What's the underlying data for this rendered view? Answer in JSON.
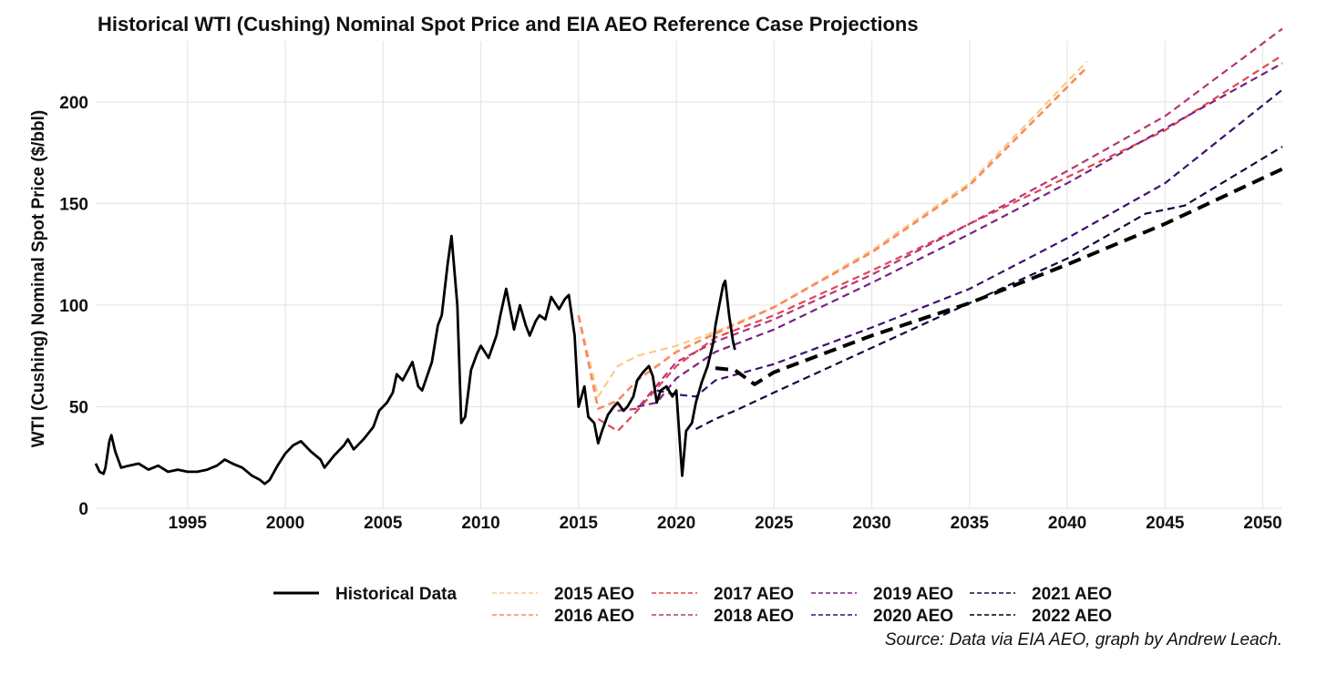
{
  "chart_data": {
    "type": "line",
    "title": "Historical WTI (Cushing) Nominal Spot Price and EIA AEO Reference Case Projections",
    "xlabel": "",
    "ylabel": "WTI (Cushing) Nominal Spot Price ($/bbl)",
    "caption": "Source: Data via EIA AEO, graph by Andrew Leach.",
    "xlim": [
      1990.3,
      2051
    ],
    "ylim": [
      0,
      230
    ],
    "x_ticks": [
      1995,
      2000,
      2005,
      2010,
      2015,
      2020,
      2025,
      2030,
      2035,
      2040,
      2045,
      2050
    ],
    "y_ticks": [
      0,
      50,
      100,
      150,
      200
    ],
    "grid": true,
    "legend_position": "bottom",
    "historical": {
      "name": "Historical Data",
      "color": "#000000",
      "x": [
        1990.3,
        1990.5,
        1990.7,
        1990.8,
        1991.0,
        1991.1,
        1991.3,
        1991.6,
        1992.0,
        1992.5,
        1993.0,
        1993.5,
        1994.0,
        1994.5,
        1995.0,
        1995.5,
        1996.0,
        1996.5,
        1996.9,
        1997.3,
        1997.8,
        1998.3,
        1998.7,
        1998.95,
        1999.2,
        1999.6,
        2000.0,
        2000.4,
        2000.8,
        2001.3,
        2001.8,
        2002.0,
        2002.5,
        2003.0,
        2003.2,
        2003.5,
        2004.0,
        2004.5,
        2004.8,
        2005.2,
        2005.5,
        2005.7,
        2006.0,
        2006.5,
        2006.8,
        2007.0,
        2007.5,
        2007.8,
        2008.0,
        2008.3,
        2008.5,
        2008.8,
        2009.0,
        2009.2,
        2009.5,
        2009.8,
        2010.0,
        2010.4,
        2010.8,
        2011.0,
        2011.3,
        2011.7,
        2012.0,
        2012.3,
        2012.5,
        2012.8,
        2013.0,
        2013.3,
        2013.6,
        2014.0,
        2014.3,
        2014.5,
        2014.8,
        2015.0,
        2015.3,
        2015.5,
        2015.8,
        2016.0,
        2016.2,
        2016.5,
        2016.8,
        2017.0,
        2017.3,
        2017.5,
        2017.8,
        2018.0,
        2018.3,
        2018.6,
        2018.8,
        2019.0,
        2019.2,
        2019.5,
        2019.8,
        2020.0,
        2020.2,
        2020.3,
        2020.5,
        2020.8,
        2021.0,
        2021.3,
        2021.6,
        2021.9,
        2022.0,
        2022.2,
        2022.4,
        2022.5,
        2022.7,
        2022.9,
        2023.0
      ],
      "values": [
        22,
        18,
        17,
        20,
        33,
        36,
        28,
        20,
        21,
        22,
        19,
        21,
        18,
        19,
        18,
        18,
        19,
        21,
        24,
        22,
        20,
        16,
        14,
        12,
        14,
        21,
        27,
        31,
        33,
        28,
        24,
        20,
        26,
        31,
        34,
        29,
        34,
        40,
        48,
        52,
        57,
        66,
        63,
        72,
        60,
        58,
        72,
        90,
        95,
        120,
        134,
        100,
        42,
        45,
        68,
        76,
        80,
        74,
        85,
        95,
        108,
        88,
        100,
        90,
        85,
        92,
        95,
        93,
        104,
        98,
        103,
        105,
        85,
        50,
        60,
        45,
        42,
        32,
        38,
        46,
        50,
        52,
        48,
        50,
        55,
        63,
        67,
        70,
        65,
        52,
        58,
        60,
        55,
        58,
        30,
        16,
        38,
        42,
        52,
        62,
        70,
        82,
        90,
        100,
        110,
        112,
        95,
        82,
        78
      ]
    },
    "series": [
      {
        "name": "2015 AEO",
        "color": "#fcc98a",
        "width": 2.2,
        "x": [
          2015,
          2016,
          2017,
          2018,
          2020,
          2022,
          2025,
          2030,
          2035,
          2041
        ],
        "values": [
          95,
          55,
          70,
          75,
          80,
          87,
          99,
          127,
          160,
          220
        ]
      },
      {
        "name": "2016 AEO",
        "color": "#f98a5c",
        "width": 2.6,
        "x": [
          2015,
          2016,
          2017,
          2018,
          2020,
          2022,
          2025,
          2030,
          2035,
          2041
        ],
        "values": [
          95,
          49,
          53,
          63,
          77,
          86,
          99,
          126,
          159,
          217
        ]
      },
      {
        "name": "2017 AEO",
        "color": "#e3454f",
        "width": 2.2,
        "x": [
          2016,
          2017,
          2018,
          2020,
          2022,
          2025,
          2030,
          2035,
          2040,
          2045,
          2051
        ],
        "values": [
          44,
          38,
          48,
          70,
          84,
          95,
          117,
          140,
          163,
          186,
          223
        ]
      },
      {
        "name": "2018 AEO",
        "color": "#b5367a",
        "width": 2.2,
        "x": [
          2017,
          2018,
          2020,
          2022,
          2025,
          2030,
          2035,
          2040,
          2045,
          2051
        ],
        "values": [
          48,
          49,
          72,
          82,
          93,
          115,
          140,
          166,
          193,
          236
        ]
      },
      {
        "name": "2019 AEO",
        "color": "#7a2182",
        "width": 2.2,
        "x": [
          2018,
          2019,
          2020,
          2022,
          2025,
          2030,
          2035,
          2040,
          2045,
          2051
        ],
        "values": [
          50,
          52,
          64,
          77,
          88,
          111,
          135,
          160,
          187,
          219
        ]
      },
      {
        "name": "2020 AEO",
        "color": "#3d0f70",
        "width": 2.2,
        "x": [
          2019,
          2020,
          2021,
          2022,
          2025,
          2030,
          2035,
          2040,
          2045,
          2051
        ],
        "values": [
          58,
          56,
          55,
          63,
          71,
          89,
          108,
          133,
          160,
          206
        ]
      },
      {
        "name": "2021 AEO",
        "color": "#14093a",
        "width": 2.2,
        "x": [
          2021,
          2022,
          2023,
          2025,
          2030,
          2035,
          2040,
          2044,
          2046,
          2051
        ],
        "values": [
          39,
          44,
          48,
          57,
          79,
          101,
          123,
          145,
          149,
          178
        ]
      },
      {
        "name": "2022 AEO",
        "color": "#000000",
        "width": 4.0,
        "x": [
          2022,
          2023,
          2024,
          2025,
          2030,
          2035,
          2040,
          2045,
          2051
        ],
        "values": [
          69,
          68,
          61,
          67,
          85,
          101,
          120,
          140,
          167
        ]
      }
    ]
  }
}
